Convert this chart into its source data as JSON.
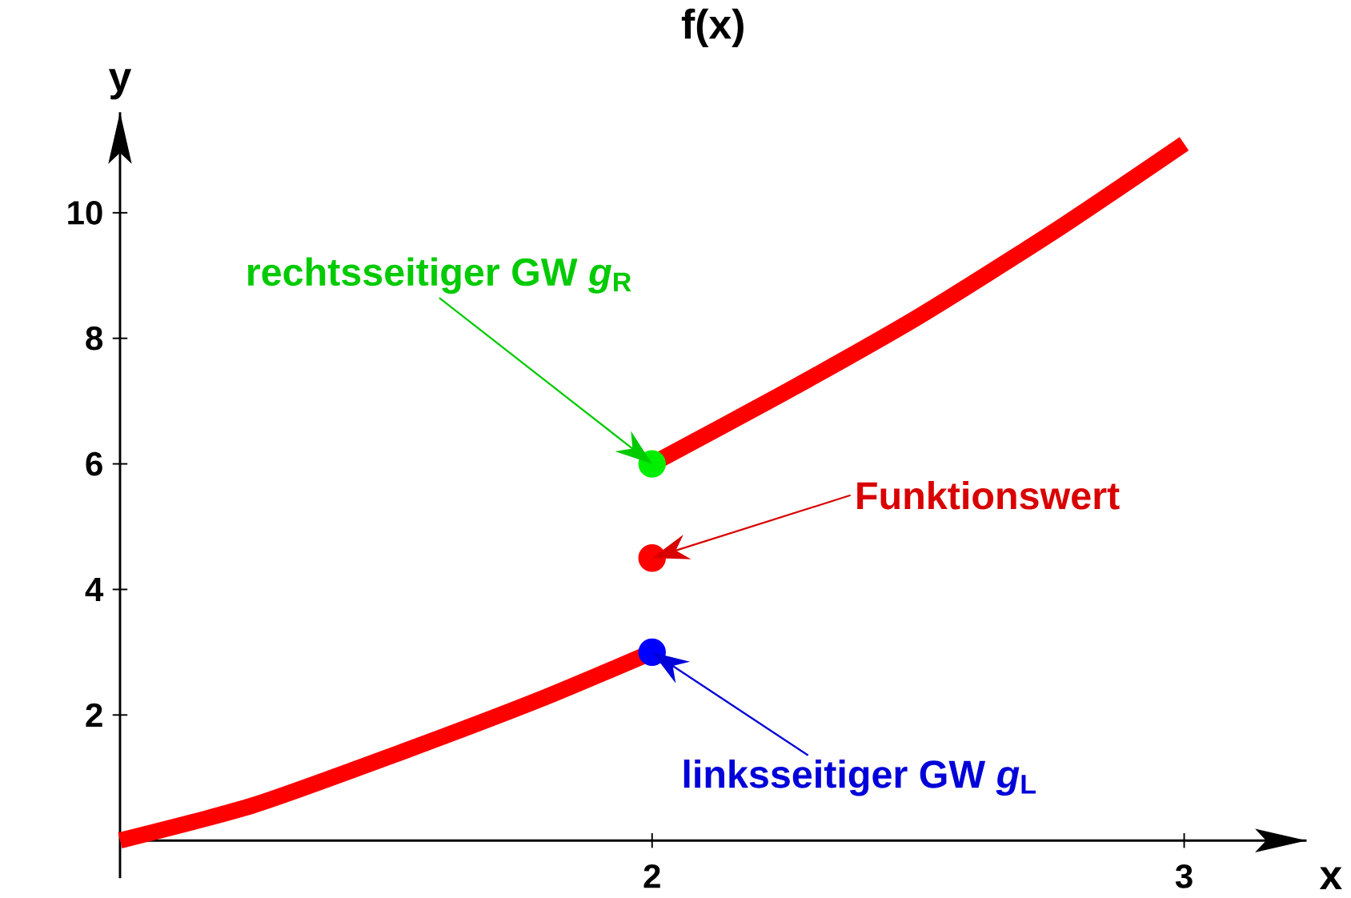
{
  "chart_data": {
    "type": "line",
    "title": "f(x)",
    "xlabel": "x",
    "ylabel": "y",
    "xlim": [
      1,
      3.23
    ],
    "ylim": [
      -0.6,
      11.6
    ],
    "xticks": [
      2,
      3
    ],
    "yticks": [
      2,
      4,
      6,
      8,
      10
    ],
    "grid": false,
    "series": [
      {
        "color": "#ff0000",
        "x": [
          1,
          1.25,
          1.52,
          1.79,
          2
        ],
        "values": [
          0,
          0.56,
          1.38,
          2.25,
          3
        ]
      },
      {
        "color": "#ff0000",
        "x": [
          2,
          2.25,
          2.5,
          2.757,
          3
        ],
        "values": [
          6,
          7.14,
          8.34,
          9.71,
          11.1
        ]
      },
      {
        "type": "scatter",
        "color": "#00ee00",
        "x": [
          2
        ],
        "values": [
          6
        ]
      },
      {
        "type": "scatter",
        "color": "#ff0000",
        "x": [
          2
        ],
        "values": [
          4.5
        ]
      },
      {
        "type": "scatter",
        "color": "#0000ff",
        "x": [
          2
        ],
        "values": [
          3
        ]
      }
    ],
    "annotations": [
      "rechtsseitiger GW *g*$_{R}$",
      "Funktionswert",
      "linksseitiger GW *g*$_{L}$"
    ]
  }
}
